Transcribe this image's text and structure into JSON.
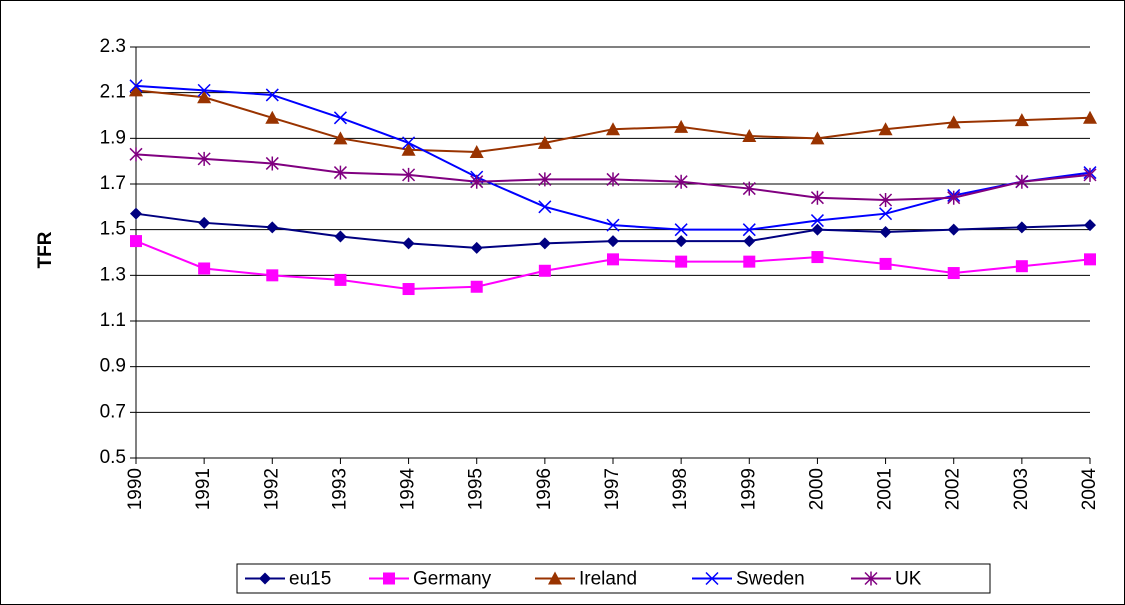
{
  "chart_data": {
    "type": "line",
    "y_label": "TFR",
    "categories": [
      "1990",
      "1991",
      "1992",
      "1993",
      "1994",
      "1995",
      "1996",
      "1997",
      "1998",
      "1999",
      "2000",
      "2001",
      "2002",
      "2003",
      "2004"
    ],
    "series": [
      {
        "name": "eu15",
        "color": "#000080",
        "marker": "diamond",
        "values": [
          1.57,
          1.53,
          1.51,
          1.47,
          1.44,
          1.42,
          1.44,
          1.45,
          1.45,
          1.45,
          1.5,
          1.49,
          1.5,
          1.51,
          1.52
        ]
      },
      {
        "name": "Germany",
        "color": "#FF00FF",
        "marker": "square",
        "values": [
          1.45,
          1.33,
          1.3,
          1.28,
          1.24,
          1.25,
          1.32,
          1.37,
          1.36,
          1.36,
          1.38,
          1.35,
          1.31,
          1.34,
          1.37
        ]
      },
      {
        "name": "Ireland",
        "color": "#993300",
        "marker": "triangle",
        "values": [
          2.11,
          2.08,
          1.99,
          1.9,
          1.85,
          1.84,
          1.88,
          1.94,
          1.95,
          1.91,
          1.9,
          1.94,
          1.97,
          1.98,
          1.99
        ]
      },
      {
        "name": "Sweden",
        "color": "#0000FF",
        "marker": "x",
        "values": [
          2.13,
          2.11,
          2.09,
          1.99,
          1.88,
          1.73,
          1.6,
          1.52,
          1.5,
          1.5,
          1.54,
          1.57,
          1.65,
          1.71,
          1.75
        ]
      },
      {
        "name": "UK",
        "color": "#800080",
        "marker": "star",
        "values": [
          1.83,
          1.81,
          1.79,
          1.75,
          1.74,
          1.71,
          1.72,
          1.72,
          1.71,
          1.68,
          1.64,
          1.63,
          1.64,
          1.71,
          1.74
        ]
      }
    ],
    "ylim": [
      0.5,
      2.3
    ],
    "yticks": [
      0.5,
      0.7,
      0.9,
      1.1,
      1.3,
      1.5,
      1.7,
      1.9,
      2.1,
      2.3
    ],
    "grid": true,
    "legend": "bottom"
  }
}
